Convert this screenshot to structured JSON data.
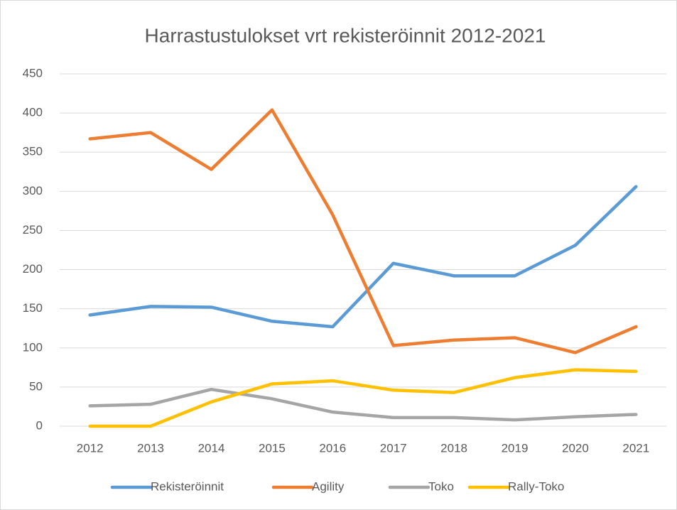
{
  "chart_data": {
    "type": "line",
    "title": "Harrastustulokset vrt rekisteröinnit 2012-2021",
    "categories": [
      "2012",
      "2013",
      "2014",
      "2015",
      "2016",
      "2017",
      "2018",
      "2019",
      "2020",
      "2021"
    ],
    "series": [
      {
        "name": "Rekisteröinnit",
        "color": "#5b9bd5",
        "values": [
          142,
          153,
          152,
          134,
          127,
          208,
          192,
          192,
          231,
          306
        ]
      },
      {
        "name": "Agility",
        "color": "#ed7d31",
        "values": [
          367,
          375,
          328,
          404,
          270,
          103,
          110,
          113,
          94,
          127
        ]
      },
      {
        "name": "Toko",
        "color": "#a5a5a5",
        "values": [
          26,
          28,
          47,
          35,
          18,
          11,
          11,
          8,
          12,
          15
        ]
      },
      {
        "name": "Rally-Toko",
        "color": "#ffc000",
        "values": [
          0,
          0,
          31,
          54,
          58,
          46,
          43,
          62,
          72,
          70
        ]
      }
    ],
    "ylim": [
      0,
      450
    ],
    "yticks": [
      0,
      50,
      100,
      150,
      200,
      250,
      300,
      350,
      400,
      450
    ],
    "grid": true,
    "legend": "bottom"
  }
}
